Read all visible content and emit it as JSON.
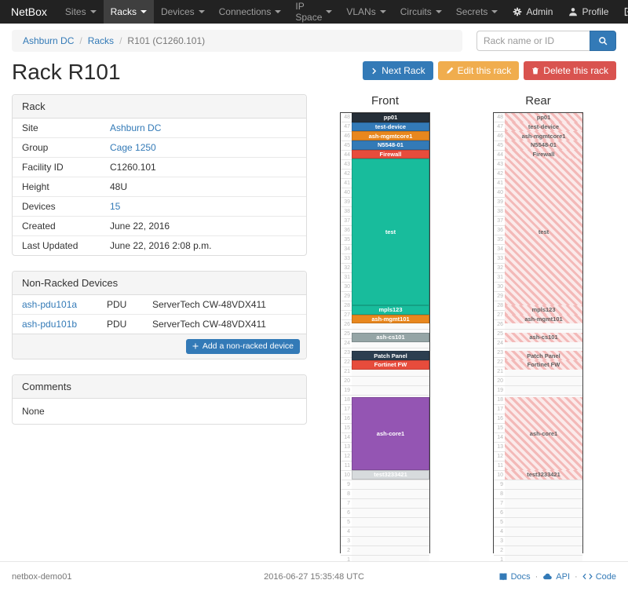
{
  "navbar": {
    "brand": "NetBox",
    "active_item": "Racks",
    "items": [
      {
        "label": "Sites"
      },
      {
        "label": "Racks"
      },
      {
        "label": "Devices"
      },
      {
        "label": "Connections"
      },
      {
        "label": "IP Space"
      },
      {
        "label": "VLANs"
      },
      {
        "label": "Circuits"
      },
      {
        "label": "Secrets"
      }
    ],
    "right": [
      {
        "label": "Admin",
        "icon": "gear-icon"
      },
      {
        "label": "Profile",
        "icon": "user-icon"
      },
      {
        "label": "Log out",
        "icon": "logout-icon"
      }
    ]
  },
  "breadcrumb": {
    "items": [
      "Ashburn DC",
      "Racks"
    ],
    "current": "R101 (C1260.101)"
  },
  "search": {
    "placeholder": "Rack name or ID"
  },
  "actions": {
    "next": "Next Rack",
    "edit": "Edit this rack",
    "delete": "Delete this rack"
  },
  "page_title": "Rack R101",
  "rack_panel": {
    "title": "Rack",
    "rows": [
      {
        "label": "Site",
        "value": "Ashburn DC",
        "link": true
      },
      {
        "label": "Group",
        "value": "Cage 1250",
        "link": true
      },
      {
        "label": "Facility ID",
        "value": "C1260.101",
        "link": false
      },
      {
        "label": "Height",
        "value": "48U",
        "link": false
      },
      {
        "label": "Devices",
        "value": "15",
        "link": true
      },
      {
        "label": "Created",
        "value": "June 22, 2016",
        "link": false
      },
      {
        "label": "Last Updated",
        "value": "June 22, 2016 2:08 p.m.",
        "link": false
      }
    ]
  },
  "non_racked": {
    "title": "Non-Racked Devices",
    "rows": [
      {
        "name": "ash-pdu101a",
        "role": "PDU",
        "type": "ServerTech CW-48VDX411"
      },
      {
        "name": "ash-pdu101b",
        "role": "PDU",
        "type": "ServerTech CW-48VDX411"
      }
    ],
    "add_button": "Add a non-racked device"
  },
  "comments": {
    "title": "Comments",
    "body": "None"
  },
  "elevations": {
    "front_title": "Front",
    "rear_title": "Rear",
    "units_total": 48,
    "devices": [
      {
        "top_u": 48,
        "height": 1,
        "name": "pp01",
        "color": "#262f38"
      },
      {
        "top_u": 47,
        "height": 1,
        "name": "test-device",
        "color": "#337ab7"
      },
      {
        "top_u": 46,
        "height": 1,
        "name": "ash-mgmtcore1",
        "color": "#e8871e"
      },
      {
        "top_u": 45,
        "height": 1,
        "name": "N5548-01",
        "color": "#337ab7"
      },
      {
        "top_u": 44,
        "height": 1,
        "name": "Firewall",
        "color": "#e74c3c"
      },
      {
        "top_u": 43,
        "height": 16,
        "name": "test",
        "color": "#18bc9c"
      },
      {
        "top_u": 27,
        "height": 1,
        "name": "mpls123",
        "color": "#18bc9c"
      },
      {
        "top_u": 26,
        "height": 1,
        "name": "ash-mgmt101",
        "color": "#e8871e"
      },
      {
        "top_u": 24,
        "height": 1,
        "name": "ash-cs101",
        "color": "#95a5a6"
      },
      {
        "top_u": 22,
        "height": 1,
        "name": "Patch Panel",
        "color": "#2c3e50"
      },
      {
        "top_u": 21,
        "height": 1,
        "name": "Fortinet FW",
        "color": "#e74c3c"
      },
      {
        "top_u": 17,
        "height": 8,
        "name": "ash-core1",
        "color": "#9455b3"
      },
      {
        "top_u": 9,
        "height": 1,
        "name": "test3233421",
        "color": "#d7dbdd",
        "text_color": "#ffffff"
      }
    ]
  },
  "footer": {
    "hostname": "netbox-demo01",
    "timestamp": "2016-06-27 15:35:48 UTC",
    "links": [
      {
        "label": "Docs",
        "icon": "book-icon"
      },
      {
        "label": "API",
        "icon": "cloud-icon"
      },
      {
        "label": "Code",
        "icon": "code-icon"
      }
    ]
  }
}
